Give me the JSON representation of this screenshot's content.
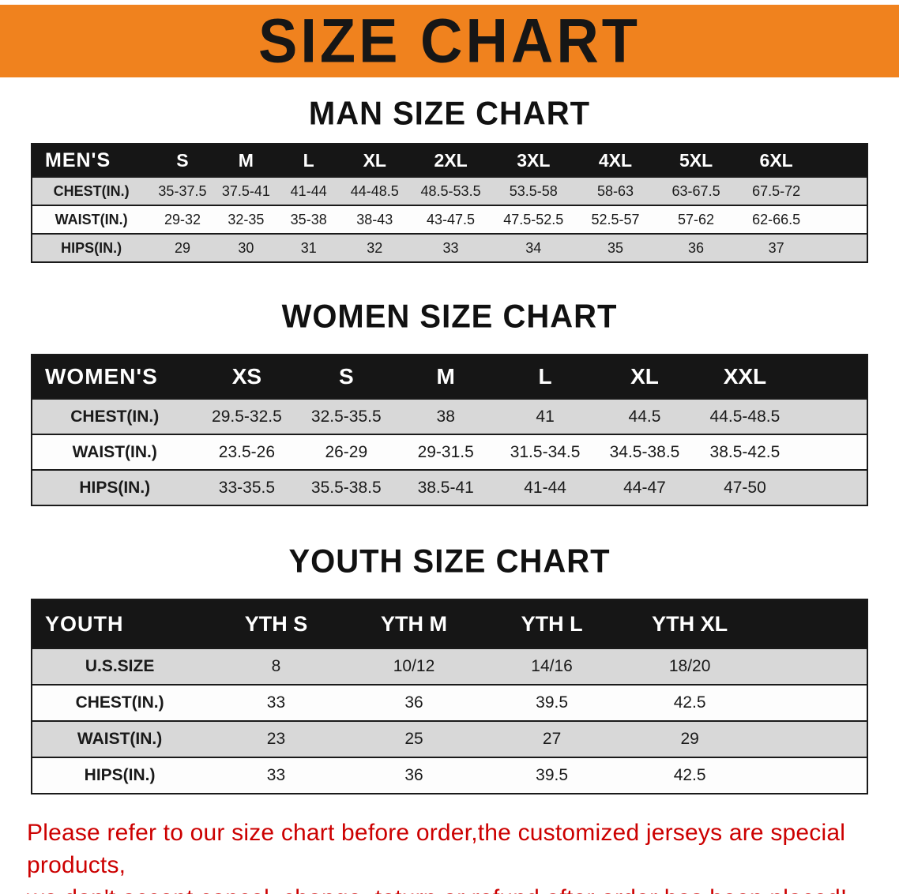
{
  "banner": {
    "title": "SIZE CHART"
  },
  "sections": [
    {
      "heading": "MAN SIZE CHART",
      "table": {
        "name": "mens",
        "header": [
          "MEN'S",
          "S",
          "M",
          "L",
          "XL",
          "2XL",
          "3XL",
          "4XL",
          "5XL",
          "6XL"
        ],
        "rows": [
          {
            "label": "CHEST(IN.)",
            "values": [
              "35-37.5",
              "37.5-41",
              "41-44",
              "44-48.5",
              "48.5-53.5",
              "53.5-58",
              "58-63",
              "63-67.5",
              "67.5-72"
            ]
          },
          {
            "label": "WAIST(IN.)",
            "values": [
              "29-32",
              "32-35",
              "35-38",
              "38-43",
              "43-47.5",
              "47.5-52.5",
              "52.5-57",
              "57-62",
              "62-66.5"
            ]
          },
          {
            "label": "HIPS(IN.)",
            "values": [
              "29",
              "30",
              "31",
              "32",
              "33",
              "34",
              "35",
              "36",
              "37"
            ]
          }
        ]
      }
    },
    {
      "heading": "WOMEN SIZE CHART",
      "table": {
        "name": "womens",
        "header": [
          "WOMEN'S",
          "XS",
          "S",
          "M",
          "L",
          "XL",
          "XXL"
        ],
        "rows": [
          {
            "label": "CHEST(IN.)",
            "values": [
              "29.5-32.5",
              "32.5-35.5",
              "38",
              "41",
              "44.5",
              "44.5-48.5"
            ]
          },
          {
            "label": "WAIST(IN.)",
            "values": [
              "23.5-26",
              "26-29",
              "29-31.5",
              "31.5-34.5",
              "34.5-38.5",
              "38.5-42.5"
            ]
          },
          {
            "label": "HIPS(IN.)",
            "values": [
              "33-35.5",
              "35.5-38.5",
              "38.5-41",
              "41-44",
              "44-47",
              "47-50"
            ]
          }
        ]
      }
    },
    {
      "heading": "YOUTH SIZE CHART",
      "table": {
        "name": "youth",
        "header": [
          "YOUTH",
          "YTH S",
          "YTH M",
          "YTH L",
          "YTH XL"
        ],
        "rows": [
          {
            "label": "U.S.SIZE",
            "values": [
              "8",
              "10/12",
              "14/16",
              "18/20"
            ]
          },
          {
            "label": "CHEST(IN.)",
            "values": [
              "33",
              "36",
              "39.5",
              "42.5"
            ]
          },
          {
            "label": "WAIST(IN.)",
            "values": [
              "23",
              "25",
              "27",
              "29"
            ]
          },
          {
            "label": "HIPS(IN.)",
            "values": [
              "33",
              "36",
              "39.5",
              "42.5"
            ]
          }
        ]
      }
    }
  ],
  "footer_note": {
    "lines": [
      "Please refer to our size chart before order,the customized jerseys are special products,",
      "we don't accept cancel, change, teturn or refund after order has been placed!"
    ]
  },
  "colors": {
    "banner_bg": "#f0821e",
    "header_bg": "#161616",
    "header_text": "#ffffff",
    "stripe_bg": "#d8d8d8",
    "border": "#1a1a1a",
    "note_color": "#cc0000"
  }
}
